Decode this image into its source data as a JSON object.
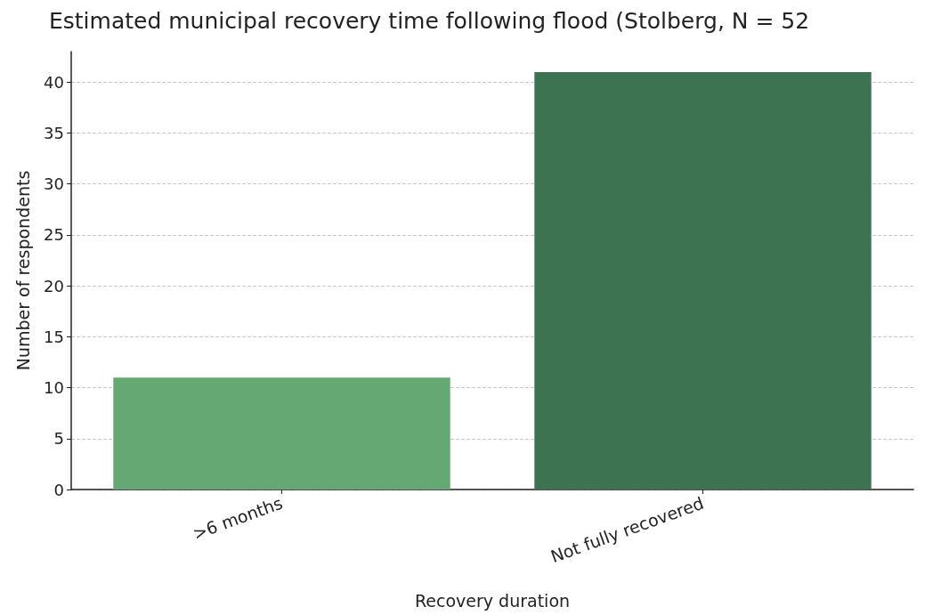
{
  "chart_data": {
    "type": "bar",
    "title": "Estimated municipal recovery time following flood (Stolberg, N = 52",
    "xlabel": "Recovery duration",
    "ylabel": "Number of respondents",
    "categories": [
      ">6 months",
      "Not fully recovered"
    ],
    "values": [
      11,
      41
    ],
    "colors": [
      "#66a873",
      "#3d7350"
    ],
    "ylim": [
      0,
      43
    ],
    "yticks": [
      0,
      5,
      10,
      15,
      20,
      25,
      30,
      35,
      40
    ],
    "grid": "y"
  }
}
